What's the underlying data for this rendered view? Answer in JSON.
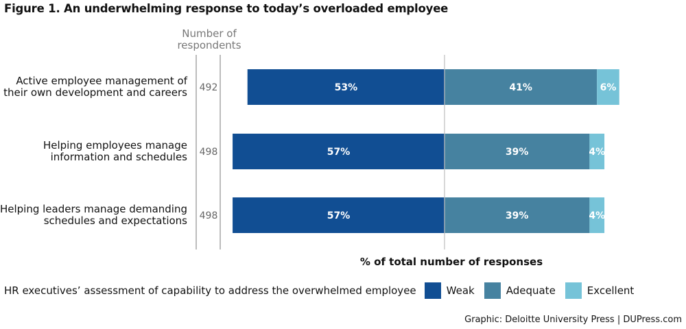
{
  "title": "Figure 1. An underwhelming response to today’s overloaded employee",
  "colors": {
    "weak": "#114e93",
    "adequate": "#4682a0",
    "excellent": "#76c3d8"
  },
  "chart_data": {
    "type": "bar",
    "orientation": "horizontal-diverging",
    "respondents_header": [
      "Number of",
      "respondents"
    ],
    "xlabel": "% of total number of responses",
    "categories": [
      [
        "Active employee management of",
        "their own development and careers"
      ],
      [
        "Helping employees manage",
        "information and schedules"
      ],
      [
        "Helping leaders manage demanding",
        "schedules and expectations"
      ]
    ],
    "respondents": [
      "492",
      "498",
      "498"
    ],
    "series": [
      {
        "name": "Weak",
        "key": "weak",
        "values": [
          53,
          57,
          57
        ]
      },
      {
        "name": "Adequate",
        "key": "adequate",
        "values": [
          41,
          39,
          39
        ]
      },
      {
        "name": "Excellent",
        "key": "excellent",
        "values": [
          6,
          4,
          4
        ]
      }
    ]
  },
  "legend": {
    "caption": "HR executives’ assessment of capability to address the overwhelmed employee",
    "items": [
      {
        "label": "Weak",
        "key": "weak"
      },
      {
        "label": "Adequate",
        "key": "adequate"
      },
      {
        "label": "Excellent",
        "key": "excellent"
      }
    ]
  },
  "credit": "Graphic: Deloitte University Press  |  DUPress.com"
}
